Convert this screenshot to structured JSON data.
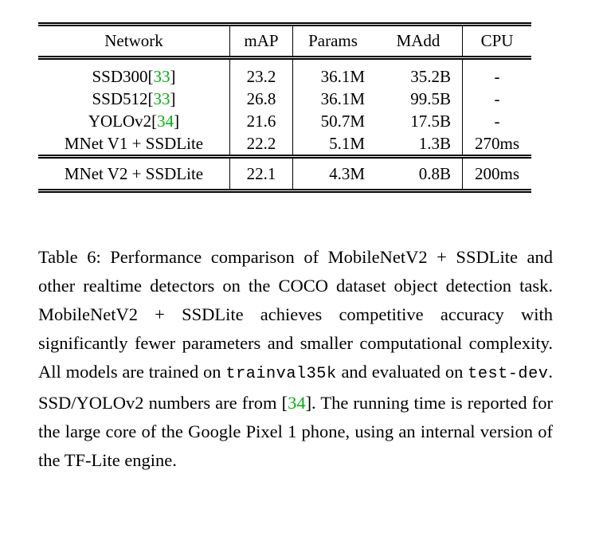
{
  "colors": {
    "citation_green": "#00b20e",
    "text": "#000000",
    "background": "#ffffff"
  },
  "table": {
    "headers": [
      "Network",
      "mAP",
      "Params",
      "MAdd",
      "CPU"
    ],
    "rows": [
      {
        "network": "SSD300",
        "citation": "33",
        "map": "23.2",
        "params": "36.1M",
        "madd": "35.2B",
        "cpu": "-",
        "bold_cells": [],
        "separator_above": false
      },
      {
        "network": "SSD512",
        "citation": "33",
        "map": "26.8",
        "params": "36.1M",
        "madd": "99.5B",
        "cpu": "-",
        "bold_cells": [],
        "separator_above": false
      },
      {
        "network": "YOLOv2",
        "citation": "34",
        "map": "21.6",
        "params": "50.7M",
        "madd": "17.5B",
        "cpu": "-",
        "bold_cells": [],
        "separator_above": false
      },
      {
        "network": "MNet V1 + SSDLite",
        "citation": "",
        "map": "22.2",
        "params": "5.1M",
        "madd": "1.3B",
        "cpu": "270ms",
        "bold_cells": [],
        "separator_above": false
      },
      {
        "network": "MNet V2 + SSDLite",
        "citation": "",
        "map": "22.1",
        "params": "4.3M",
        "madd": "0.8B",
        "cpu": "200ms",
        "bold_cells": [
          "params",
          "madd"
        ],
        "separator_above": true
      }
    ]
  },
  "caption": {
    "segments": [
      {
        "style": "normal",
        "text": "Table 6:  Performance comparison of MobileNetV2 + SSDLite and other realtime detectors on the COCO dataset object detection task.  MobileNetV2 + SSDLite achieves competitive accuracy with significantly fewer parameters and smaller computational complexity.  All models are trained on "
      },
      {
        "style": "mono",
        "text": "trainval35k"
      },
      {
        "style": "normal",
        "text": " and evaluated on "
      },
      {
        "style": "mono",
        "text": "test-dev"
      },
      {
        "style": "normal",
        "text": ". SSD/YOLOv2 numbers are from ["
      },
      {
        "style": "citation",
        "text": "34"
      },
      {
        "style": "normal",
        "text": "]. The running time is reported for the large core of the Google Pixel 1 phone, using an internal version of the TF-Lite engine."
      }
    ]
  }
}
